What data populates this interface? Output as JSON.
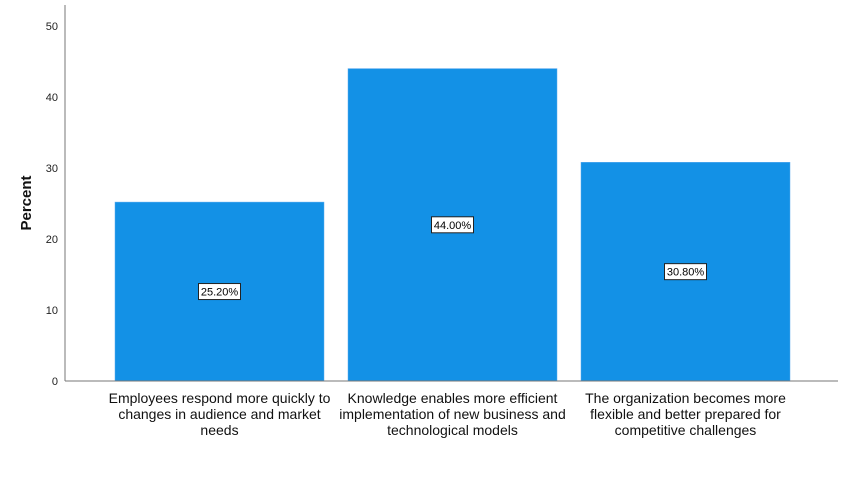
{
  "chart_data": {
    "type": "bar",
    "ylabel": "Percent",
    "xlabel": "",
    "ylim": [
      0,
      50
    ],
    "yticks": [
      0,
      10,
      20,
      30,
      40,
      50
    ],
    "grid": false,
    "bar_color": "#1391E6",
    "categories": [
      "Employees respond more quickly to changes in audience and market needs",
      "Knowledge enables more efficient implementation of new business and technological models",
      "The organization becomes more flexible and better prepared for competitive challenges"
    ],
    "values": [
      25.2,
      44.0,
      30.8
    ],
    "data_labels": [
      "25.20%",
      "44.00%",
      "30.80%"
    ]
  }
}
